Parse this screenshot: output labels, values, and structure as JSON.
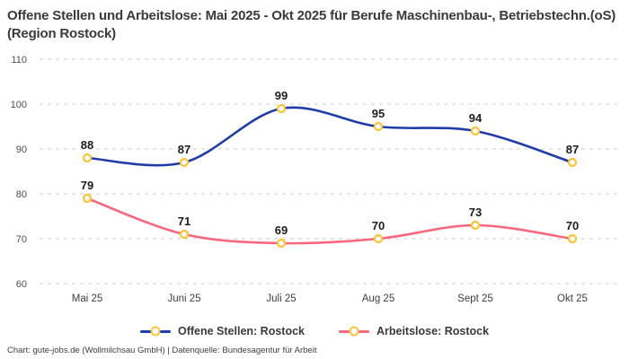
{
  "title": "Offene Stellen und Arbeitslose: Mai 2025 - Okt 2025 für Berufe Maschinenbau-, Betriebstechn.(oS) (Region Rostock)",
  "footer": "Chart: gute-jobs.de (Wollmilchsau GmbH) | Datenquelle: Bundesagentur für Arbeit",
  "colors": {
    "grid": "#cccccc",
    "marker": "#fdc435",
    "title_text": "#3a3a3a"
  },
  "chart_data": {
    "type": "line",
    "title": "Offene Stellen und Arbeitslose: Mai 2025 - Okt 2025 für Berufe Maschinenbau-, Betriebstechn.(oS) (Region Rostock)",
    "categories": [
      "Mai 25",
      "Juni 25",
      "Juli 25",
      "Aug 25",
      "Sept 25",
      "Okt 25"
    ],
    "series": [
      {
        "name": "Offene Stellen: Rostock",
        "values": [
          88,
          87,
          99,
          95,
          94,
          87
        ],
        "color": "#1f3da8"
      },
      {
        "name": "Arbeitslose: Rostock",
        "values": [
          79,
          71,
          69,
          70,
          73,
          70
        ],
        "color": "#f9677f"
      }
    ],
    "marker_color": "#fdc435",
    "ylim": [
      60,
      110
    ],
    "yticks": [
      60,
      70,
      80,
      90,
      100,
      110
    ],
    "grid": "horizontal-dashed",
    "legend_position": "bottom",
    "xlabel": "",
    "ylabel": ""
  }
}
